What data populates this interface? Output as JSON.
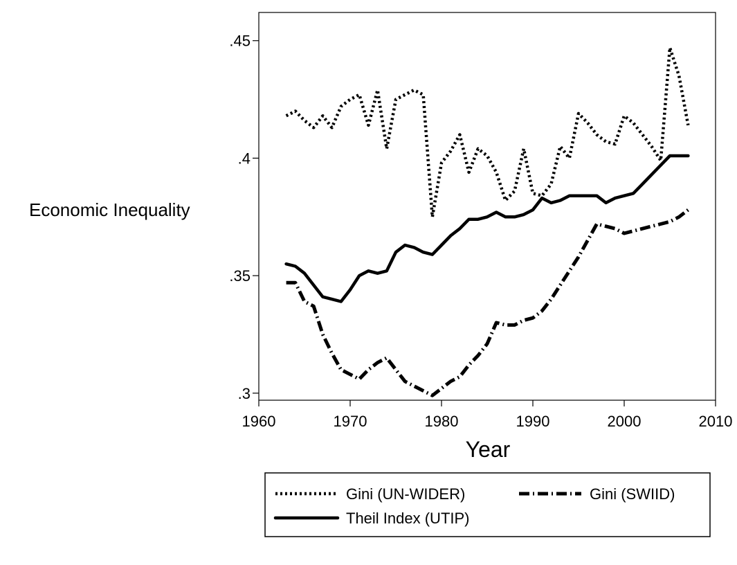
{
  "chart_data": {
    "type": "line",
    "title": "",
    "xlabel": "Year",
    "ylabel": "Economic Inequality",
    "xlim": [
      1960,
      2010
    ],
    "ylim": [
      0.3,
      0.45
    ],
    "x_ticks": [
      1960,
      1970,
      1980,
      1990,
      2000,
      2010
    ],
    "x_tick_labels": [
      "1960",
      "1970",
      "1980",
      "1990",
      "2000",
      "2010"
    ],
    "y_ticks": [
      0.3,
      0.35,
      0.4,
      0.45
    ],
    "y_tick_labels": [
      ".3",
      ".35",
      ".4",
      ".45"
    ],
    "grid": false,
    "legend_position": "bottom",
    "x": [
      1963,
      1964,
      1965,
      1966,
      1967,
      1968,
      1969,
      1970,
      1971,
      1972,
      1973,
      1974,
      1975,
      1976,
      1977,
      1978,
      1979,
      1980,
      1981,
      1982,
      1983,
      1984,
      1985,
      1986,
      1987,
      1988,
      1989,
      1990,
      1991,
      1992,
      1993,
      1994,
      1995,
      1996,
      1997,
      1998,
      1999,
      2000,
      2001,
      2002,
      2003,
      2004,
      2005,
      2006,
      2007
    ],
    "series": [
      {
        "name": "Gini (UN-WIDER)",
        "style": "dotted",
        "color": "#000000",
        "values": [
          0.418,
          0.42,
          0.416,
          0.413,
          0.418,
          0.413,
          0.422,
          0.425,
          0.427,
          0.414,
          0.429,
          0.404,
          0.425,
          0.427,
          0.429,
          0.427,
          0.375,
          0.398,
          0.403,
          0.41,
          0.394,
          0.404,
          0.401,
          0.394,
          0.382,
          0.386,
          0.404,
          0.385,
          0.384,
          0.389,
          0.405,
          0.4,
          0.419,
          0.415,
          0.41,
          0.407,
          0.406,
          0.418,
          0.415,
          0.41,
          0.405,
          0.399,
          0.447,
          0.435,
          0.414
        ]
      },
      {
        "name": "Theil Index (UTIP)",
        "style": "solid",
        "color": "#000000",
        "values": [
          0.355,
          0.354,
          0.351,
          0.346,
          0.341,
          0.34,
          0.339,
          0.344,
          0.35,
          0.352,
          0.351,
          0.352,
          0.36,
          0.363,
          0.362,
          0.36,
          0.359,
          0.363,
          0.367,
          0.37,
          0.374,
          0.374,
          0.375,
          0.377,
          0.375,
          0.375,
          0.376,
          0.378,
          0.383,
          0.381,
          0.382,
          0.384,
          0.384,
          0.384,
          0.384,
          0.381,
          0.383,
          0.384,
          0.385,
          0.389,
          0.393,
          0.397,
          0.401,
          0.401,
          0.401
        ]
      },
      {
        "name": "Gini (SWIID)",
        "style": "dashdot",
        "color": "#000000",
        "values": [
          0.347,
          0.347,
          0.339,
          0.337,
          0.325,
          0.317,
          0.31,
          0.308,
          0.306,
          0.31,
          0.313,
          0.315,
          0.31,
          0.305,
          0.303,
          0.301,
          0.299,
          0.302,
          0.305,
          0.307,
          0.312,
          0.316,
          0.321,
          0.33,
          0.329,
          0.329,
          0.331,
          0.332,
          0.335,
          0.34,
          0.346,
          0.352,
          0.358,
          0.365,
          0.372,
          0.371,
          0.37,
          0.368,
          0.369,
          0.37,
          0.371,
          0.372,
          0.373,
          0.375,
          0.378
        ]
      }
    ]
  }
}
